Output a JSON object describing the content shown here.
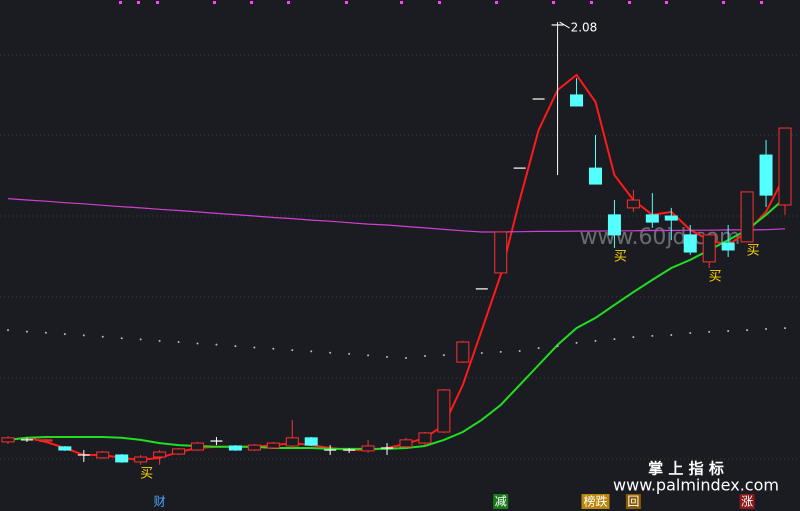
{
  "chart_data": {
    "type": "candlestick",
    "ylim": [
      0.4,
      2.16
    ],
    "up_color": "#ff3030",
    "down_color": "#54ffff",
    "flat_color": "#ffffff",
    "open": [
      0.638,
      0.645,
      0.641,
      0.621,
      0.593,
      0.583,
      0.593,
      0.569,
      0.586,
      0.596,
      0.61,
      0.641,
      0.624,
      0.61,
      0.617,
      0.624,
      0.652,
      0.61,
      0.61,
      0.607,
      0.617,
      0.621,
      0.634,
      0.672,
      0.913,
      1.165,
      1.22,
      1.581,
      1.819,
      2.074,
      1.833,
      1.581,
      1.42,
      1.444,
      1.42,
      1.416,
      1.351,
      1.258,
      1.323,
      1.327,
      1.626,
      1.454
    ],
    "high": [
      0.658,
      0.652,
      0.648,
      0.624,
      0.61,
      0.607,
      0.596,
      0.593,
      0.61,
      0.617,
      0.638,
      0.655,
      0.627,
      0.631,
      0.638,
      0.714,
      0.655,
      0.627,
      0.617,
      0.645,
      0.634,
      0.652,
      0.672,
      0.82,
      0.986,
      1.165,
      1.361,
      1.581,
      1.819,
      2.084,
      1.891,
      1.695,
      1.471,
      1.506,
      1.495,
      1.444,
      1.385,
      1.351,
      1.385,
      1.499,
      1.678,
      1.719
    ],
    "low": [
      0.631,
      0.638,
      0.638,
      0.607,
      0.569,
      0.58,
      0.566,
      0.559,
      0.559,
      0.593,
      0.607,
      0.627,
      0.607,
      0.607,
      0.614,
      0.617,
      0.624,
      0.593,
      0.6,
      0.6,
      0.593,
      0.617,
      0.627,
      0.669,
      0.91,
      1.165,
      1.22,
      1.581,
      1.819,
      1.557,
      1.795,
      1.526,
      1.306,
      1.43,
      1.375,
      1.333,
      1.282,
      1.237,
      1.275,
      1.327,
      1.447,
      1.42
    ],
    "close": [
      0.652,
      0.645,
      0.645,
      0.61,
      0.593,
      0.603,
      0.569,
      0.586,
      0.603,
      0.614,
      0.634,
      0.641,
      0.61,
      0.627,
      0.634,
      0.652,
      0.627,
      0.61,
      0.61,
      0.624,
      0.617,
      0.645,
      0.669,
      0.817,
      0.982,
      1.165,
      1.361,
      1.581,
      1.819,
      2.074,
      1.795,
      1.526,
      1.351,
      1.471,
      1.395,
      1.402,
      1.292,
      1.351,
      1.299,
      1.499,
      1.488,
      1.719
    ],
    "lines": [
      {
        "color": "#ff1a1a",
        "style": "solid",
        "values": [
          0.645,
          0.652,
          0.638,
          0.617,
          0.593,
          0.593,
          0.583,
          0.576,
          0.583,
          0.603,
          0.617,
          0.621,
          0.621,
          0.621,
          0.627,
          0.634,
          0.627,
          0.617,
          0.61,
          0.61,
          0.617,
          0.631,
          0.652,
          0.696,
          0.834,
          1.023,
          1.213,
          1.471,
          1.712,
          1.85,
          1.902,
          1.809,
          1.557,
          1.471,
          1.42,
          1.43,
          1.368,
          1.333,
          1.316,
          1.361,
          1.43,
          1.557
        ]
      },
      {
        "color": "#22dd22",
        "style": "solid",
        "values": [
          0.645,
          0.652,
          0.655,
          0.655,
          0.655,
          0.655,
          0.652,
          0.645,
          0.634,
          0.627,
          0.624,
          0.621,
          0.621,
          0.621,
          0.617,
          0.617,
          0.617,
          0.614,
          0.614,
          0.614,
          0.614,
          0.617,
          0.624,
          0.645,
          0.672,
          0.714,
          0.765,
          0.834,
          0.903,
          0.972,
          1.03,
          1.065,
          1.11,
          1.154,
          1.196,
          1.237,
          1.265,
          1.299,
          1.333,
          1.368,
          1.42,
          1.478
        ]
      },
      {
        "color": "#d040d0",
        "style": "solid",
        "values": [
          1.476,
          1.471,
          1.467,
          1.462,
          1.458,
          1.453,
          1.448,
          1.444,
          1.439,
          1.435,
          1.43,
          1.425,
          1.421,
          1.416,
          1.411,
          1.407,
          1.402,
          1.398,
          1.393,
          1.388,
          1.385,
          1.38,
          1.375,
          1.37,
          1.365,
          1.361,
          1.361,
          1.362,
          1.363,
          1.363,
          1.364,
          1.364,
          1.365,
          1.365,
          1.366,
          1.366,
          1.367,
          1.367,
          1.368,
          1.368,
          1.369,
          1.372
        ]
      },
      {
        "color": "#bbbbbb",
        "style": "dots",
        "values": [
          1.023,
          1.018,
          1.014,
          1.009,
          1.005,
          1.0,
          0.995,
          0.991,
          0.986,
          0.982,
          0.977,
          0.973,
          0.968,
          0.963,
          0.959,
          0.954,
          0.95,
          0.945,
          0.941,
          0.936,
          0.931,
          0.927,
          0.934,
          0.937,
          0.941,
          0.944,
          0.948,
          0.951,
          0.961,
          0.968,
          0.979,
          0.986,
          0.992,
          0.999,
          1.003,
          1.006,
          1.013,
          1.017,
          1.02,
          1.023,
          1.027,
          1.03
        ]
      }
    ],
    "signals": [
      null,
      null,
      null,
      null,
      null,
      null,
      null,
      "买",
      null,
      null,
      null,
      null,
      null,
      null,
      null,
      null,
      null,
      null,
      null,
      null,
      null,
      null,
      null,
      null,
      null,
      null,
      null,
      null,
      null,
      null,
      null,
      null,
      "买",
      null,
      null,
      null,
      null,
      "买",
      null,
      "买",
      null,
      null
    ],
    "signal_color": "#ffd700",
    "high_label": "2.08",
    "bottom_labels": [
      null,
      null,
      null,
      null,
      null,
      null,
      null,
      null,
      {
        "text": "财",
        "color": "#4aa8ff",
        "bg": "none"
      },
      null,
      null,
      null,
      null,
      null,
      null,
      null,
      null,
      null,
      null,
      null,
      null,
      null,
      null,
      null,
      null,
      null,
      {
        "text": "减",
        "color": "#ffffff",
        "bg": "#1a7a1a"
      },
      null,
      null,
      null,
      null,
      {
        "text": "榜跌",
        "color": "#ffffff",
        "bg": "#b8860b"
      },
      null,
      {
        "text": "回",
        "color": "#ffffff",
        "bg": "#8a5a00"
      },
      null,
      null,
      null,
      null,
      null,
      {
        "text": "涨",
        "color": "#ffffff",
        "bg": "#8b1a1a"
      },
      null,
      null
    ]
  },
  "branding": {
    "watermark": "www.60jd.com",
    "title": "掌 上 指 标",
    "url": "www.palmindex.com"
  }
}
